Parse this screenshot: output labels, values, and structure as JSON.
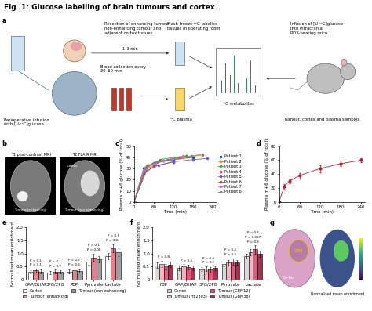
{
  "title": "Fig. 1: Glucose labelling of brain tumours and cortex.",
  "panel_labels": [
    "a",
    "b",
    "c",
    "d",
    "e",
    "f",
    "g"
  ],
  "diagram": {
    "resection": "Resection of enhancing tumour,\nnon-enhancing tumour and\nadjacent cortex tissues",
    "timing": "1–3 min",
    "flash_freeze": "Flash-freeze ¹³C-labelled\ntissues in operating room",
    "blood": "Blood collection every\n30–60 min",
    "plasma": "¹³C plasma",
    "infusion": "Perioperative infusion\nwith [U-¹³C]glucose",
    "metabolites": "¹³C metabolites",
    "mouse_infusion": "Infusion of [U-¹³C]glucose\ninto intracranial\nPDX-bearing mice",
    "samples": "Tumour, cortex and plasma samples"
  },
  "mri": {
    "titles": [
      "T1 post-contrast MRI",
      "T2 FLAIR MRI"
    ],
    "labels": [
      "Tumour (enhancing)",
      "Cortex",
      "Tumour (non-enhancing)"
    ]
  },
  "section": {
    "labels": [
      "GBM",
      "Cortex"
    ],
    "colorbar_label": "Normalized mean enrichment"
  },
  "chart_data": [
    {
      "type": "line",
      "x_label": "Time (min)",
      "y_label": "Plasma m+6 glucose (% of total)",
      "xlim": [
        0,
        250
      ],
      "xticks": [
        0,
        60,
        120,
        180,
        240
      ],
      "ylim": [
        0,
        50
      ],
      "yticks": [
        0,
        10,
        20,
        30,
        40,
        50
      ],
      "marker": "circle",
      "legend": "right",
      "series": [
        {
          "name": "Patient 1",
          "color": "#1f4e9c",
          "x": [
            0,
            30,
            60,
            120,
            180
          ],
          "values": [
            0,
            30,
            35,
            38,
            40
          ]
        },
        {
          "name": "Patient 2",
          "color": "#e08a2c",
          "x": [
            0,
            30,
            60,
            90,
            150,
            210
          ],
          "values": [
            0,
            28,
            33,
            37,
            40,
            42
          ]
        },
        {
          "name": "Patient 3",
          "color": "#3a9e4a",
          "x": [
            0,
            40,
            80,
            120,
            160
          ],
          "values": [
            0,
            32,
            38,
            40,
            41
          ]
        },
        {
          "name": "Patient 4",
          "color": "#c43c3c",
          "x": [
            0,
            30,
            60,
            120
          ],
          "values": [
            0,
            25,
            32,
            36
          ]
        },
        {
          "name": "Patient 5",
          "color": "#7e57c2",
          "x": [
            0,
            30,
            75,
            120,
            180,
            225
          ],
          "values": [
            0,
            27,
            33,
            36,
            38,
            39
          ]
        },
        {
          "name": "Patient 6",
          "color": "#8c564b",
          "x": [
            0,
            45,
            90,
            135
          ],
          "values": [
            0,
            33,
            37,
            40
          ]
        },
        {
          "name": "Patient 7",
          "color": "#d973b5",
          "x": [
            0,
            30,
            60,
            90,
            120,
            150
          ],
          "values": [
            0,
            29,
            34,
            37,
            39,
            41
          ]
        },
        {
          "name": "Patient 8",
          "color": "#7f7f7f",
          "x": [
            0,
            35,
            70,
            105,
            140,
            175,
            210
          ],
          "values": [
            0,
            31,
            36,
            38,
            40,
            41,
            43
          ]
        }
      ]
    },
    {
      "type": "line",
      "x_label": "Time (min)",
      "y_label": "Plasma m+6 glucose (% of total)",
      "xlim": [
        0,
        250
      ],
      "xticks": [
        0,
        60,
        120,
        180,
        240
      ],
      "ylim": [
        0,
        80
      ],
      "yticks": [
        0,
        20,
        40,
        60,
        80
      ],
      "marker": "circle",
      "color": "#b22234",
      "x": [
        0,
        15,
        30,
        60,
        120,
        180,
        240
      ],
      "values": [
        0,
        22,
        30,
        38,
        48,
        55,
        60
      ],
      "errors": [
        0,
        4,
        3,
        4,
        5,
        4,
        3
      ]
    },
    {
      "type": "bar",
      "y_label": "Normalized mean enrichment",
      "categories": [
        "GAP/DHAP",
        "3PG/2PG",
        "PEP",
        "Pyruvate",
        "Lactate"
      ],
      "ylim": [
        0,
        2.0
      ],
      "yticks": [
        0,
        0.5,
        1.0,
        1.5,
        2.0
      ],
      "legend": "bottom",
      "p_values": [
        [
          "P = 0.1",
          "P = 0.1"
        ],
        [
          "P = 0.7",
          "P = 0.1"
        ],
        [
          "P = 0.6",
          "P = 0.7"
        ],
        [
          "P = 0.06",
          "P = 0.1"
        ],
        [
          "P = 0.04",
          "P = 0.5"
        ]
      ],
      "series": [
        {
          "name": "Cortex",
          "color": "#ffffff",
          "values": [
            0.3,
            0.28,
            0.32,
            0.7,
            0.9
          ],
          "errors": [
            0.06,
            0.05,
            0.06,
            0.12,
            0.12
          ]
        },
        {
          "name": "Tumour (enhancing)",
          "color": "#e57f8e",
          "values": [
            0.35,
            0.32,
            0.36,
            0.85,
            1.2
          ],
          "errors": [
            0.07,
            0.06,
            0.07,
            0.14,
            0.15
          ]
        },
        {
          "name": "Tumour (non-enhancing)",
          "color": "#9e9e9e",
          "values": [
            0.32,
            0.3,
            0.34,
            0.78,
            1.05
          ],
          "errors": [
            0.06,
            0.06,
            0.06,
            0.12,
            0.14
          ]
        }
      ]
    },
    {
      "type": "bar",
      "y_label": "Normalized mean enrichment",
      "categories": [
        "FBP",
        "GAP/DHAP",
        "3PG/2PG",
        "Pyruvate",
        "Lactate"
      ],
      "ylim": [
        0,
        2.0
      ],
      "yticks": [
        0,
        0.5,
        1.0,
        1.5,
        2.0
      ],
      "legend": "bottom",
      "p_values": [
        [
          "P = 0.8"
        ],
        [
          "P = 0.4"
        ],
        [
          "P = 0.2",
          "P = 0.4"
        ],
        [
          "P = 0.5",
          "P = 0.4"
        ],
        [
          "P = 0.5",
          "P = 0.007",
          "P = 0.5"
        ]
      ],
      "series": [
        {
          "name": "Cortex",
          "color": "#d9d9d9",
          "values": [
            0.55,
            0.45,
            0.4,
            0.6,
            0.9
          ],
          "errors": [
            0.1,
            0.08,
            0.07,
            0.1,
            0.1
          ]
        },
        {
          "name": "Tumour (HF2303)",
          "color": "#f4b6c2",
          "values": [
            0.6,
            0.5,
            0.42,
            0.65,
            1.05
          ],
          "errors": [
            0.12,
            0.09,
            0.08,
            0.1,
            0.12
          ]
        },
        {
          "name": "Tumour (GBM12)",
          "color": "#e05a7a",
          "values": [
            0.5,
            0.48,
            0.4,
            0.7,
            1.15
          ],
          "errors": [
            0.1,
            0.08,
            0.08,
            0.12,
            0.15
          ]
        },
        {
          "name": "Tumour (GBM38)",
          "color": "#a8324f",
          "values": [
            0.58,
            0.46,
            0.44,
            0.66,
            1.0
          ],
          "errors": [
            0.11,
            0.09,
            0.07,
            0.1,
            0.12
          ]
        }
      ]
    }
  ]
}
